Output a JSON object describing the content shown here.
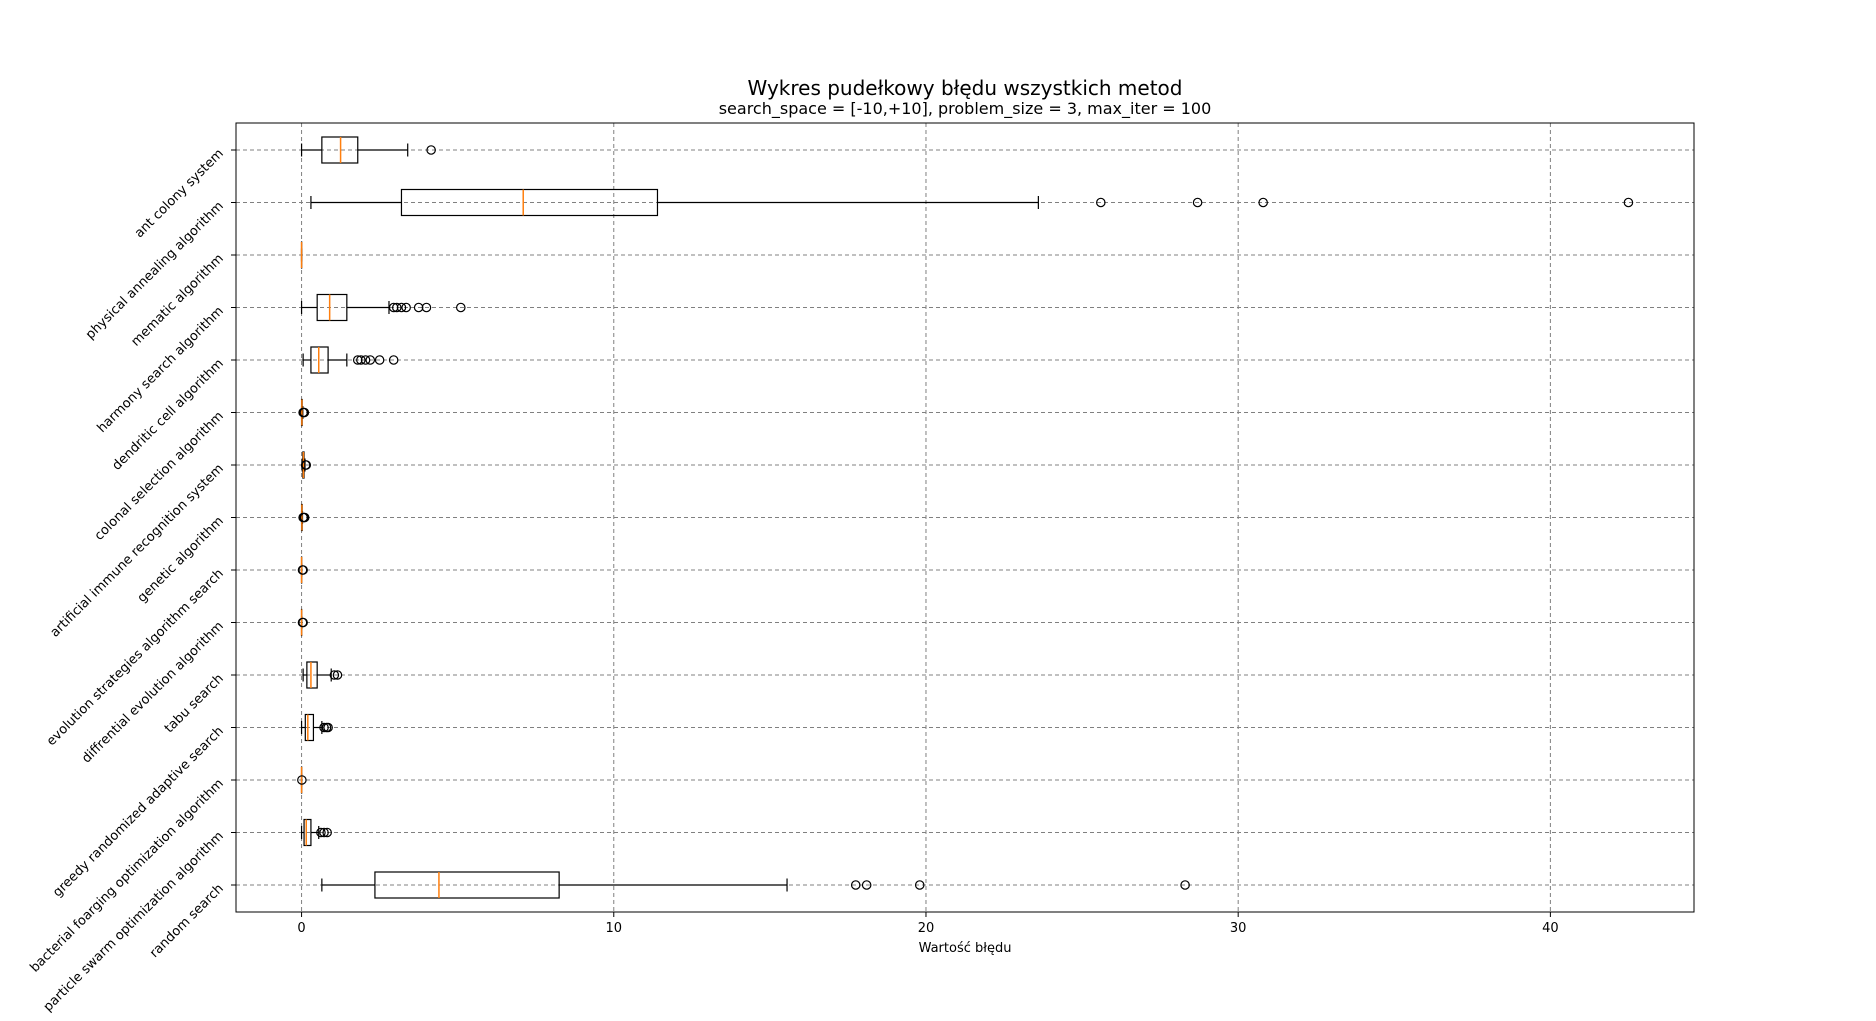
{
  "chart_data": {
    "type": "boxplot",
    "orientation": "horizontal",
    "title": "Wykres pudełkowy błędu wszystkich metod",
    "subtitle": "search_space = [-10,+10], problem_size = 3, max_iter = 100",
    "xlabel": "Wartość błędu",
    "ylabel": "",
    "xlim": [
      -2.1,
      44.6
    ],
    "xticks": [
      0,
      10,
      20,
      30,
      40
    ],
    "grid": true,
    "colors": {
      "box": "#000000",
      "median": "#ff7f0e",
      "grid": "#808080",
      "background": "#ffffff"
    },
    "categories": [
      {
        "name": "ant colony system",
        "whislo": 0.0,
        "q1": 0.65,
        "med": 1.25,
        "q3": 1.8,
        "whishi": 3.4,
        "fliers": [
          4.15
        ]
      },
      {
        "name": "physical annealing algorithm",
        "whislo": 0.3,
        "q1": 3.2,
        "med": 7.1,
        "q3": 11.4,
        "whishi": 23.6,
        "fliers": [
          25.6,
          28.7,
          30.8,
          42.5
        ]
      },
      {
        "name": "mematic algorithm",
        "whislo": 0.0,
        "q1": 0.0,
        "med": 0.0,
        "q3": 0.0,
        "whishi": 0.0,
        "fliers": []
      },
      {
        "name": "harmony search algorithm",
        "whislo": 0.0,
        "q1": 0.5,
        "med": 0.9,
        "q3": 1.45,
        "whishi": 2.8,
        "fliers": [
          2.95,
          3.05,
          3.2,
          3.35,
          3.75,
          4.0,
          5.1
        ]
      },
      {
        "name": "dendritic cell algorithm",
        "whislo": 0.05,
        "q1": 0.3,
        "med": 0.55,
        "q3": 0.85,
        "whishi": 1.45,
        "fliers": [
          1.8,
          1.9,
          2.05,
          2.2,
          2.5,
          2.95
        ]
      },
      {
        "name": "colonal selection algorithm",
        "whislo": 0.0,
        "q1": 0.0,
        "med": 0.01,
        "q3": 0.02,
        "whishi": 0.04,
        "fliers": [
          0.05,
          0.07,
          0.09
        ]
      },
      {
        "name": "artificial immune recognition system",
        "whislo": 0.02,
        "q1": 0.04,
        "med": 0.06,
        "q3": 0.08,
        "whishi": 0.11,
        "fliers": [
          0.13,
          0.15
        ]
      },
      {
        "name": "genetic algorithm",
        "whislo": 0.0,
        "q1": 0.0,
        "med": 0.01,
        "q3": 0.02,
        "whishi": 0.03,
        "fliers": [
          0.05,
          0.08,
          0.1
        ]
      },
      {
        "name": "evolution strategies algorithm search",
        "whislo": 0.0,
        "q1": 0.0,
        "med": 0.0,
        "q3": 0.0,
        "whishi": 0.01,
        "fliers": [
          0.03,
          0.05
        ]
      },
      {
        "name": "diffrential evolution algorithm",
        "whislo": 0.0,
        "q1": 0.0,
        "med": 0.0,
        "q3": 0.0,
        "whishi": 0.01,
        "fliers": [
          0.03,
          0.05
        ]
      },
      {
        "name": "tabu search",
        "whislo": 0.05,
        "q1": 0.17,
        "med": 0.3,
        "q3": 0.5,
        "whishi": 0.95,
        "fliers": [
          1.05,
          1.15
        ]
      },
      {
        "name": "greedy randomized adaptive search",
        "whislo": 0.0,
        "q1": 0.12,
        "med": 0.2,
        "q3": 0.38,
        "whishi": 0.65,
        "fliers": [
          0.72,
          0.8,
          0.85
        ]
      },
      {
        "name": "bacterial foarging optimization algorithm",
        "whislo": 0.0,
        "q1": 0.0,
        "med": 0.0,
        "q3": 0.0,
        "whishi": 0.0,
        "fliers": [
          0.01
        ]
      },
      {
        "name": "particle swarm optimization algorithm",
        "whislo": 0.0,
        "q1": 0.08,
        "med": 0.15,
        "q3": 0.3,
        "whishi": 0.55,
        "fliers": [
          0.62,
          0.72,
          0.82
        ]
      },
      {
        "name": "random search",
        "whislo": 0.65,
        "q1": 2.35,
        "med": 4.4,
        "q3": 8.25,
        "whishi": 15.55,
        "fliers": [
          17.75,
          18.1,
          19.8,
          28.3
        ]
      }
    ]
  }
}
